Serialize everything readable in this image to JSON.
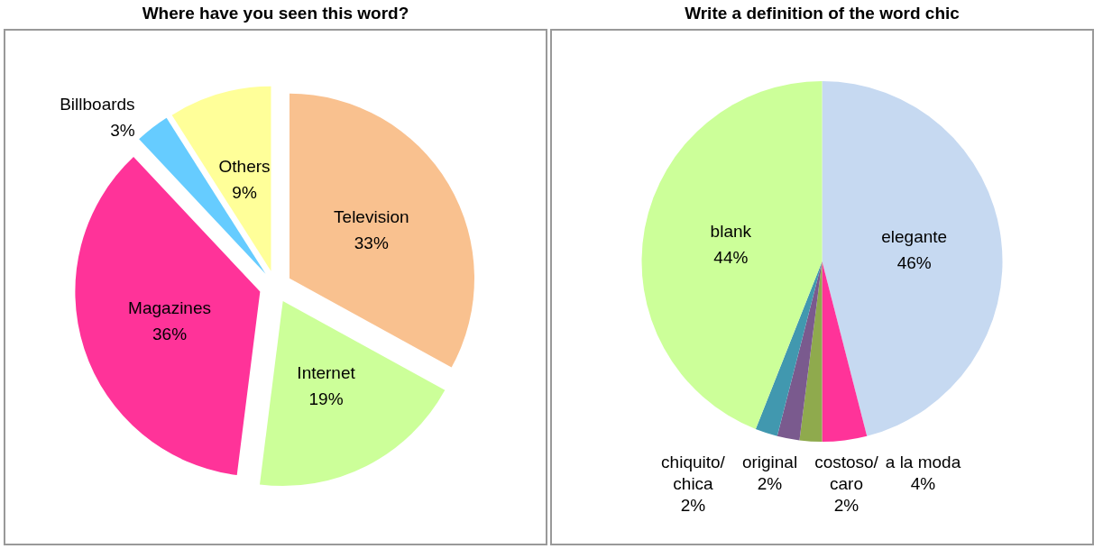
{
  "chart_data": [
    {
      "type": "pie",
      "title": "Where have you seen this word?",
      "categories": [
        "Television",
        "Internet",
        "Magazines",
        "Billboards",
        "Others"
      ],
      "values": [
        33,
        19,
        36,
        3,
        9
      ],
      "value_labels": [
        "33%",
        "19%",
        "36%",
        "3%",
        "9%"
      ],
      "colors": [
        "#f9c18f",
        "#ccff99",
        "#ff3399",
        "#66ccff",
        "#ffff99"
      ],
      "legend": false
    },
    {
      "type": "pie",
      "title": "Write a definition of the word chic",
      "categories": [
        "elegante",
        "a la moda",
        "costoso/ caro",
        "original",
        "chiquito/ chica",
        "blank"
      ],
      "values": [
        46,
        4,
        2,
        2,
        2,
        44
      ],
      "value_labels": [
        "46%",
        "4%",
        "2%",
        "2%",
        "2%",
        "44%"
      ],
      "colors": [
        "#c6d9f1",
        "#ff3399",
        "#8faa4d",
        "#7a5a8e",
        "#4198af",
        "#ccff99"
      ],
      "legend": false
    }
  ]
}
